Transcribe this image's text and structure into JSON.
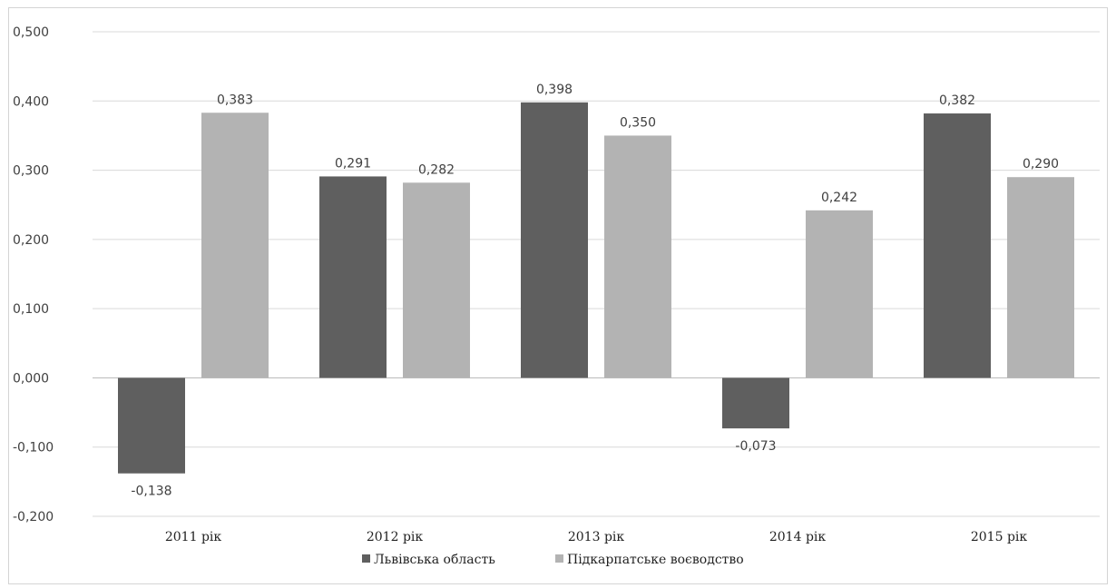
{
  "chart_data": {
    "type": "bar",
    "title": "",
    "xlabel": "",
    "ylabel": "",
    "categories": [
      "2011 рік",
      "2012 рік",
      "2013 рік",
      "2014 рік",
      "2015 рік"
    ],
    "series": [
      {
        "name": "Львівська область",
        "color": "#5f5f5f",
        "values": [
          -0.138,
          0.291,
          0.398,
          -0.073,
          0.382
        ],
        "labels": [
          "-0,138",
          "0,291",
          "0,398",
          "-0,073",
          "0,382"
        ]
      },
      {
        "name": "Підкарпатське воєводство",
        "color": "#b3b3b3",
        "values": [
          0.383,
          0.282,
          0.35,
          0.242,
          0.29
        ],
        "labels": [
          "0,383",
          "0,282",
          "0,350",
          "0,242",
          "0,290"
        ]
      }
    ],
    "ylim": [
      -0.2,
      0.5
    ],
    "yticks": [
      0.5,
      0.4,
      0.3,
      0.2,
      0.1,
      0.0,
      -0.1,
      -0.2
    ],
    "ytick_labels": [
      "0,500",
      "0,400",
      "0,300",
      "0,200",
      "0,100",
      "0,000",
      "-0,100",
      "-0,200"
    ],
    "grid": true,
    "legend_position": "bottom-center"
  }
}
